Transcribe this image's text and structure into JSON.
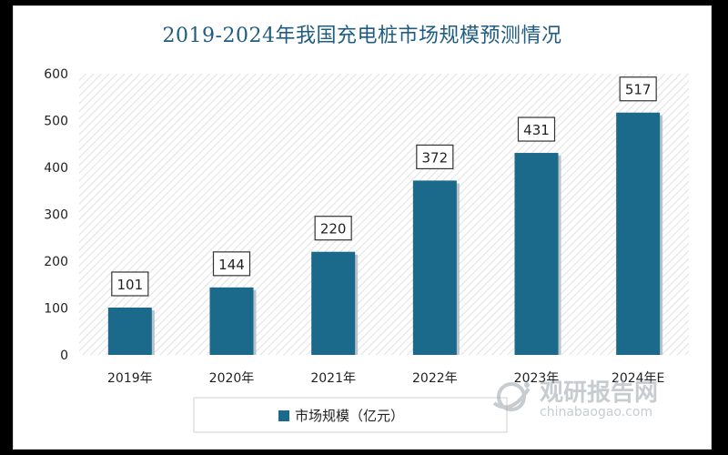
{
  "chart_data": {
    "type": "bar",
    "title": "2019-2024年我国充电桩市场规模预测情况",
    "categories": [
      "2019年",
      "2020年",
      "2021年",
      "2022年",
      "2023年",
      "2024年E"
    ],
    "series": [
      {
        "name": "市场规模（亿元）",
        "values": [
          101,
          144,
          220,
          372,
          431,
          517
        ]
      }
    ],
    "data_labels": [
      "101",
      "144",
      "220",
      "372",
      "431",
      "517"
    ],
    "ylim": [
      0,
      600
    ],
    "yticks": [
      0,
      100,
      200,
      300,
      400,
      500,
      600
    ],
    "grid": false,
    "legend": "bottom-center",
    "bar_color": "#1b6a8c",
    "background_pattern": "diagonal-hatch"
  },
  "watermark": {
    "cn": "观研报告网",
    "en": "chinabaogao.com",
    "icon": "globe-swoosh-logo"
  }
}
